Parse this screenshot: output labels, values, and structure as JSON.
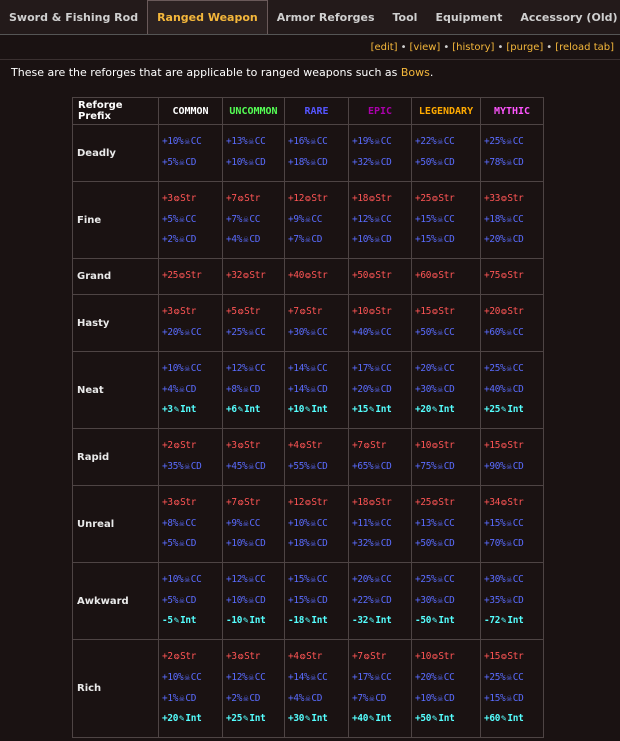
{
  "tabs": [
    {
      "label": "Sword & Fishing Rod",
      "active": false
    },
    {
      "label": "Ranged Weapon",
      "active": true
    },
    {
      "label": "Armor Reforges",
      "active": false
    },
    {
      "label": "Tool",
      "active": false
    },
    {
      "label": "Equipment",
      "active": false
    },
    {
      "label": "Accessory (Old)",
      "active": false
    }
  ],
  "toolbar": {
    "links": [
      "[edit]",
      "[view]",
      "[history]",
      "[purge]",
      "[reload tab]"
    ],
    "separator": "•"
  },
  "intro": {
    "text": "These are the reforges that are applicable to ranged weapons such as ",
    "highlight": "Bows",
    "end": "."
  },
  "colors": {
    "common": "#ffffff",
    "uncommon": "#55ff55",
    "rare": "#5555ff",
    "epic": "#aa00aa",
    "legendary": "#ffaa00",
    "mythic": "#ff55ff",
    "accent": "#f4b73b",
    "strength": "#ff5555",
    "crit": "#5a6cff",
    "intelligence": "#55ffff"
  },
  "icons": {
    "strength": "strength-icon",
    "crit_chance": "crit-chance-icon",
    "crit_damage": "crit-damage-icon",
    "intelligence": "intelligence-icon"
  },
  "table": {
    "prefix_header": "Reforge Prefix",
    "rarities": [
      "COMMON",
      "UNCOMMON",
      "RARE",
      "EPIC",
      "LEGENDARY",
      "MYTHIC"
    ],
    "rows": [
      {
        "name": "Deadly",
        "cells": [
          [
            [
              "+10%",
              "cc"
            ],
            [
              "+5%",
              "cd"
            ]
          ],
          [
            [
              "+13%",
              "cc"
            ],
            [
              "+10%",
              "cd"
            ]
          ],
          [
            [
              "+16%",
              "cc"
            ],
            [
              "+18%",
              "cd"
            ]
          ],
          [
            [
              "+19%",
              "cc"
            ],
            [
              "+32%",
              "cd"
            ]
          ],
          [
            [
              "+22%",
              "cc"
            ],
            [
              "+50%",
              "cd"
            ]
          ],
          [
            [
              "+25%",
              "cc"
            ],
            [
              "+78%",
              "cd"
            ]
          ]
        ]
      },
      {
        "name": "Fine",
        "cells": [
          [
            [
              "+3",
              "str"
            ],
            [
              "+5%",
              "cc"
            ],
            [
              "+2%",
              "cd"
            ]
          ],
          [
            [
              "+7",
              "str"
            ],
            [
              "+7%",
              "cc"
            ],
            [
              "+4%",
              "cd"
            ]
          ],
          [
            [
              "+12",
              "str"
            ],
            [
              "+9%",
              "cc"
            ],
            [
              "+7%",
              "cd"
            ]
          ],
          [
            [
              "+18",
              "str"
            ],
            [
              "+12%",
              "cc"
            ],
            [
              "+10%",
              "cd"
            ]
          ],
          [
            [
              "+25",
              "str"
            ],
            [
              "+15%",
              "cc"
            ],
            [
              "+15%",
              "cd"
            ]
          ],
          [
            [
              "+33",
              "str"
            ],
            [
              "+18%",
              "cc"
            ],
            [
              "+20%",
              "cd"
            ]
          ]
        ]
      },
      {
        "name": "Grand",
        "cells": [
          [
            [
              "+25",
              "str"
            ]
          ],
          [
            [
              "+32",
              "str"
            ]
          ],
          [
            [
              "+40",
              "str"
            ]
          ],
          [
            [
              "+50",
              "str"
            ]
          ],
          [
            [
              "+60",
              "str"
            ]
          ],
          [
            [
              "+75",
              "str"
            ]
          ]
        ]
      },
      {
        "name": "Hasty",
        "cells": [
          [
            [
              "+3",
              "str"
            ],
            [
              "+20%",
              "cc"
            ]
          ],
          [
            [
              "+5",
              "str"
            ],
            [
              "+25%",
              "cc"
            ]
          ],
          [
            [
              "+7",
              "str"
            ],
            [
              "+30%",
              "cc"
            ]
          ],
          [
            [
              "+10",
              "str"
            ],
            [
              "+40%",
              "cc"
            ]
          ],
          [
            [
              "+15",
              "str"
            ],
            [
              "+50%",
              "cc"
            ]
          ],
          [
            [
              "+20",
              "str"
            ],
            [
              "+60%",
              "cc"
            ]
          ]
        ]
      },
      {
        "name": "Neat",
        "cells": [
          [
            [
              "+10%",
              "cc"
            ],
            [
              "+4%",
              "cd"
            ],
            [
              "+3",
              "int"
            ]
          ],
          [
            [
              "+12%",
              "cc"
            ],
            [
              "+8%",
              "cd"
            ],
            [
              "+6",
              "int"
            ]
          ],
          [
            [
              "+14%",
              "cc"
            ],
            [
              "+14%",
              "cd"
            ],
            [
              "+10",
              "int"
            ]
          ],
          [
            [
              "+17%",
              "cc"
            ],
            [
              "+20%",
              "cd"
            ],
            [
              "+15",
              "int"
            ]
          ],
          [
            [
              "+20%",
              "cc"
            ],
            [
              "+30%",
              "cd"
            ],
            [
              "+20",
              "int"
            ]
          ],
          [
            [
              "+25%",
              "cc"
            ],
            [
              "+40%",
              "cd"
            ],
            [
              "+25",
              "int"
            ]
          ]
        ]
      },
      {
        "name": "Rapid",
        "cells": [
          [
            [
              "+2",
              "str"
            ],
            [
              "+35%",
              "cd"
            ]
          ],
          [
            [
              "+3",
              "str"
            ],
            [
              "+45%",
              "cd"
            ]
          ],
          [
            [
              "+4",
              "str"
            ],
            [
              "+55%",
              "cd"
            ]
          ],
          [
            [
              "+7",
              "str"
            ],
            [
              "+65%",
              "cd"
            ]
          ],
          [
            [
              "+10",
              "str"
            ],
            [
              "+75%",
              "cd"
            ]
          ],
          [
            [
              "+15",
              "str"
            ],
            [
              "+90%",
              "cd"
            ]
          ]
        ]
      },
      {
        "name": "Unreal",
        "cells": [
          [
            [
              "+3",
              "str"
            ],
            [
              "+8%",
              "cc"
            ],
            [
              "+5%",
              "cd"
            ]
          ],
          [
            [
              "+7",
              "str"
            ],
            [
              "+9%",
              "cc"
            ],
            [
              "+10%",
              "cd"
            ]
          ],
          [
            [
              "+12",
              "str"
            ],
            [
              "+10%",
              "cc"
            ],
            [
              "+18%",
              "cd"
            ]
          ],
          [
            [
              "+18",
              "str"
            ],
            [
              "+11%",
              "cc"
            ],
            [
              "+32%",
              "cd"
            ]
          ],
          [
            [
              "+25",
              "str"
            ],
            [
              "+13%",
              "cc"
            ],
            [
              "+50%",
              "cd"
            ]
          ],
          [
            [
              "+34",
              "str"
            ],
            [
              "+15%",
              "cc"
            ],
            [
              "+70%",
              "cd"
            ]
          ]
        ]
      },
      {
        "name": "Awkward",
        "cells": [
          [
            [
              "+10%",
              "cc"
            ],
            [
              "+5%",
              "cd"
            ],
            [
              "-5",
              "int"
            ]
          ],
          [
            [
              "+12%",
              "cc"
            ],
            [
              "+10%",
              "cd"
            ],
            [
              "-10",
              "int"
            ]
          ],
          [
            [
              "+15%",
              "cc"
            ],
            [
              "+15%",
              "cd"
            ],
            [
              "-18",
              "int"
            ]
          ],
          [
            [
              "+20%",
              "cc"
            ],
            [
              "+22%",
              "cd"
            ],
            [
              "-32",
              "int"
            ]
          ],
          [
            [
              "+25%",
              "cc"
            ],
            [
              "+30%",
              "cd"
            ],
            [
              "-50",
              "int"
            ]
          ],
          [
            [
              "+30%",
              "cc"
            ],
            [
              "+35%",
              "cd"
            ],
            [
              "-72",
              "int"
            ]
          ]
        ]
      },
      {
        "name": "Rich",
        "cells": [
          [
            [
              "+2",
              "str"
            ],
            [
              "+10%",
              "cc"
            ],
            [
              "+1%",
              "cd"
            ],
            [
              "+20",
              "int"
            ]
          ],
          [
            [
              "+3",
              "str"
            ],
            [
              "+12%",
              "cc"
            ],
            [
              "+2%",
              "cd"
            ],
            [
              "+25",
              "int"
            ]
          ],
          [
            [
              "+4",
              "str"
            ],
            [
              "+14%",
              "cc"
            ],
            [
              "+4%",
              "cd"
            ],
            [
              "+30",
              "int"
            ]
          ],
          [
            [
              "+7",
              "str"
            ],
            [
              "+17%",
              "cc"
            ],
            [
              "+7%",
              "cd"
            ],
            [
              "+40",
              "int"
            ]
          ],
          [
            [
              "+10",
              "str"
            ],
            [
              "+20%",
              "cc"
            ],
            [
              "+10%",
              "cd"
            ],
            [
              "+50",
              "int"
            ]
          ],
          [
            [
              "+15",
              "str"
            ],
            [
              "+25%",
              "cc"
            ],
            [
              "+15%",
              "cd"
            ],
            [
              "+60",
              "int"
            ]
          ]
        ]
      }
    ],
    "stat_labels": {
      "str": "Str",
      "cc": "CC",
      "cd": "CD",
      "int": "Int"
    },
    "stat_glyphs": {
      "str": "❂",
      "cc": "☠",
      "cd": "☠",
      "int": "✎"
    }
  }
}
